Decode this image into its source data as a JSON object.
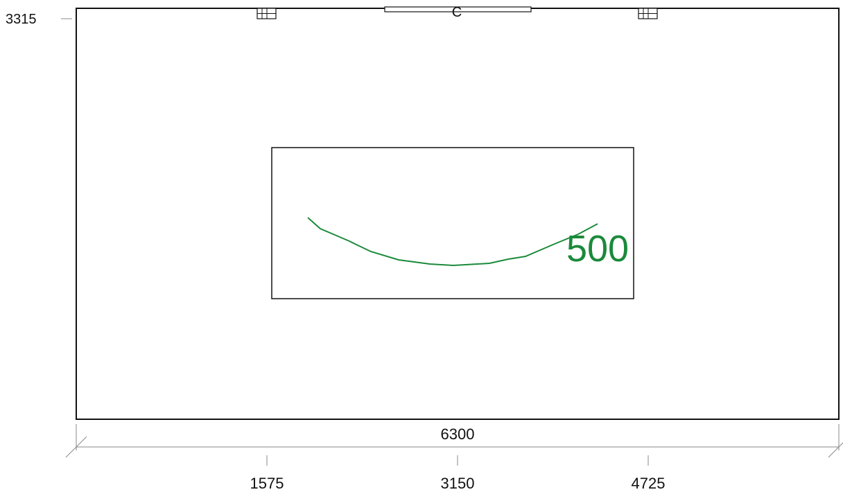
{
  "drawing": {
    "height_label": "3315",
    "width_label": "6300",
    "opening_label": "C",
    "contour_label": "500",
    "ticks": [
      "1575",
      "3150",
      "4725"
    ],
    "colors": {
      "line": "#111111",
      "contour": "#1a8a3a",
      "dimension": "#8a8a8a"
    },
    "icons": [
      "outlet-icon-left",
      "outlet-icon-right"
    ]
  }
}
